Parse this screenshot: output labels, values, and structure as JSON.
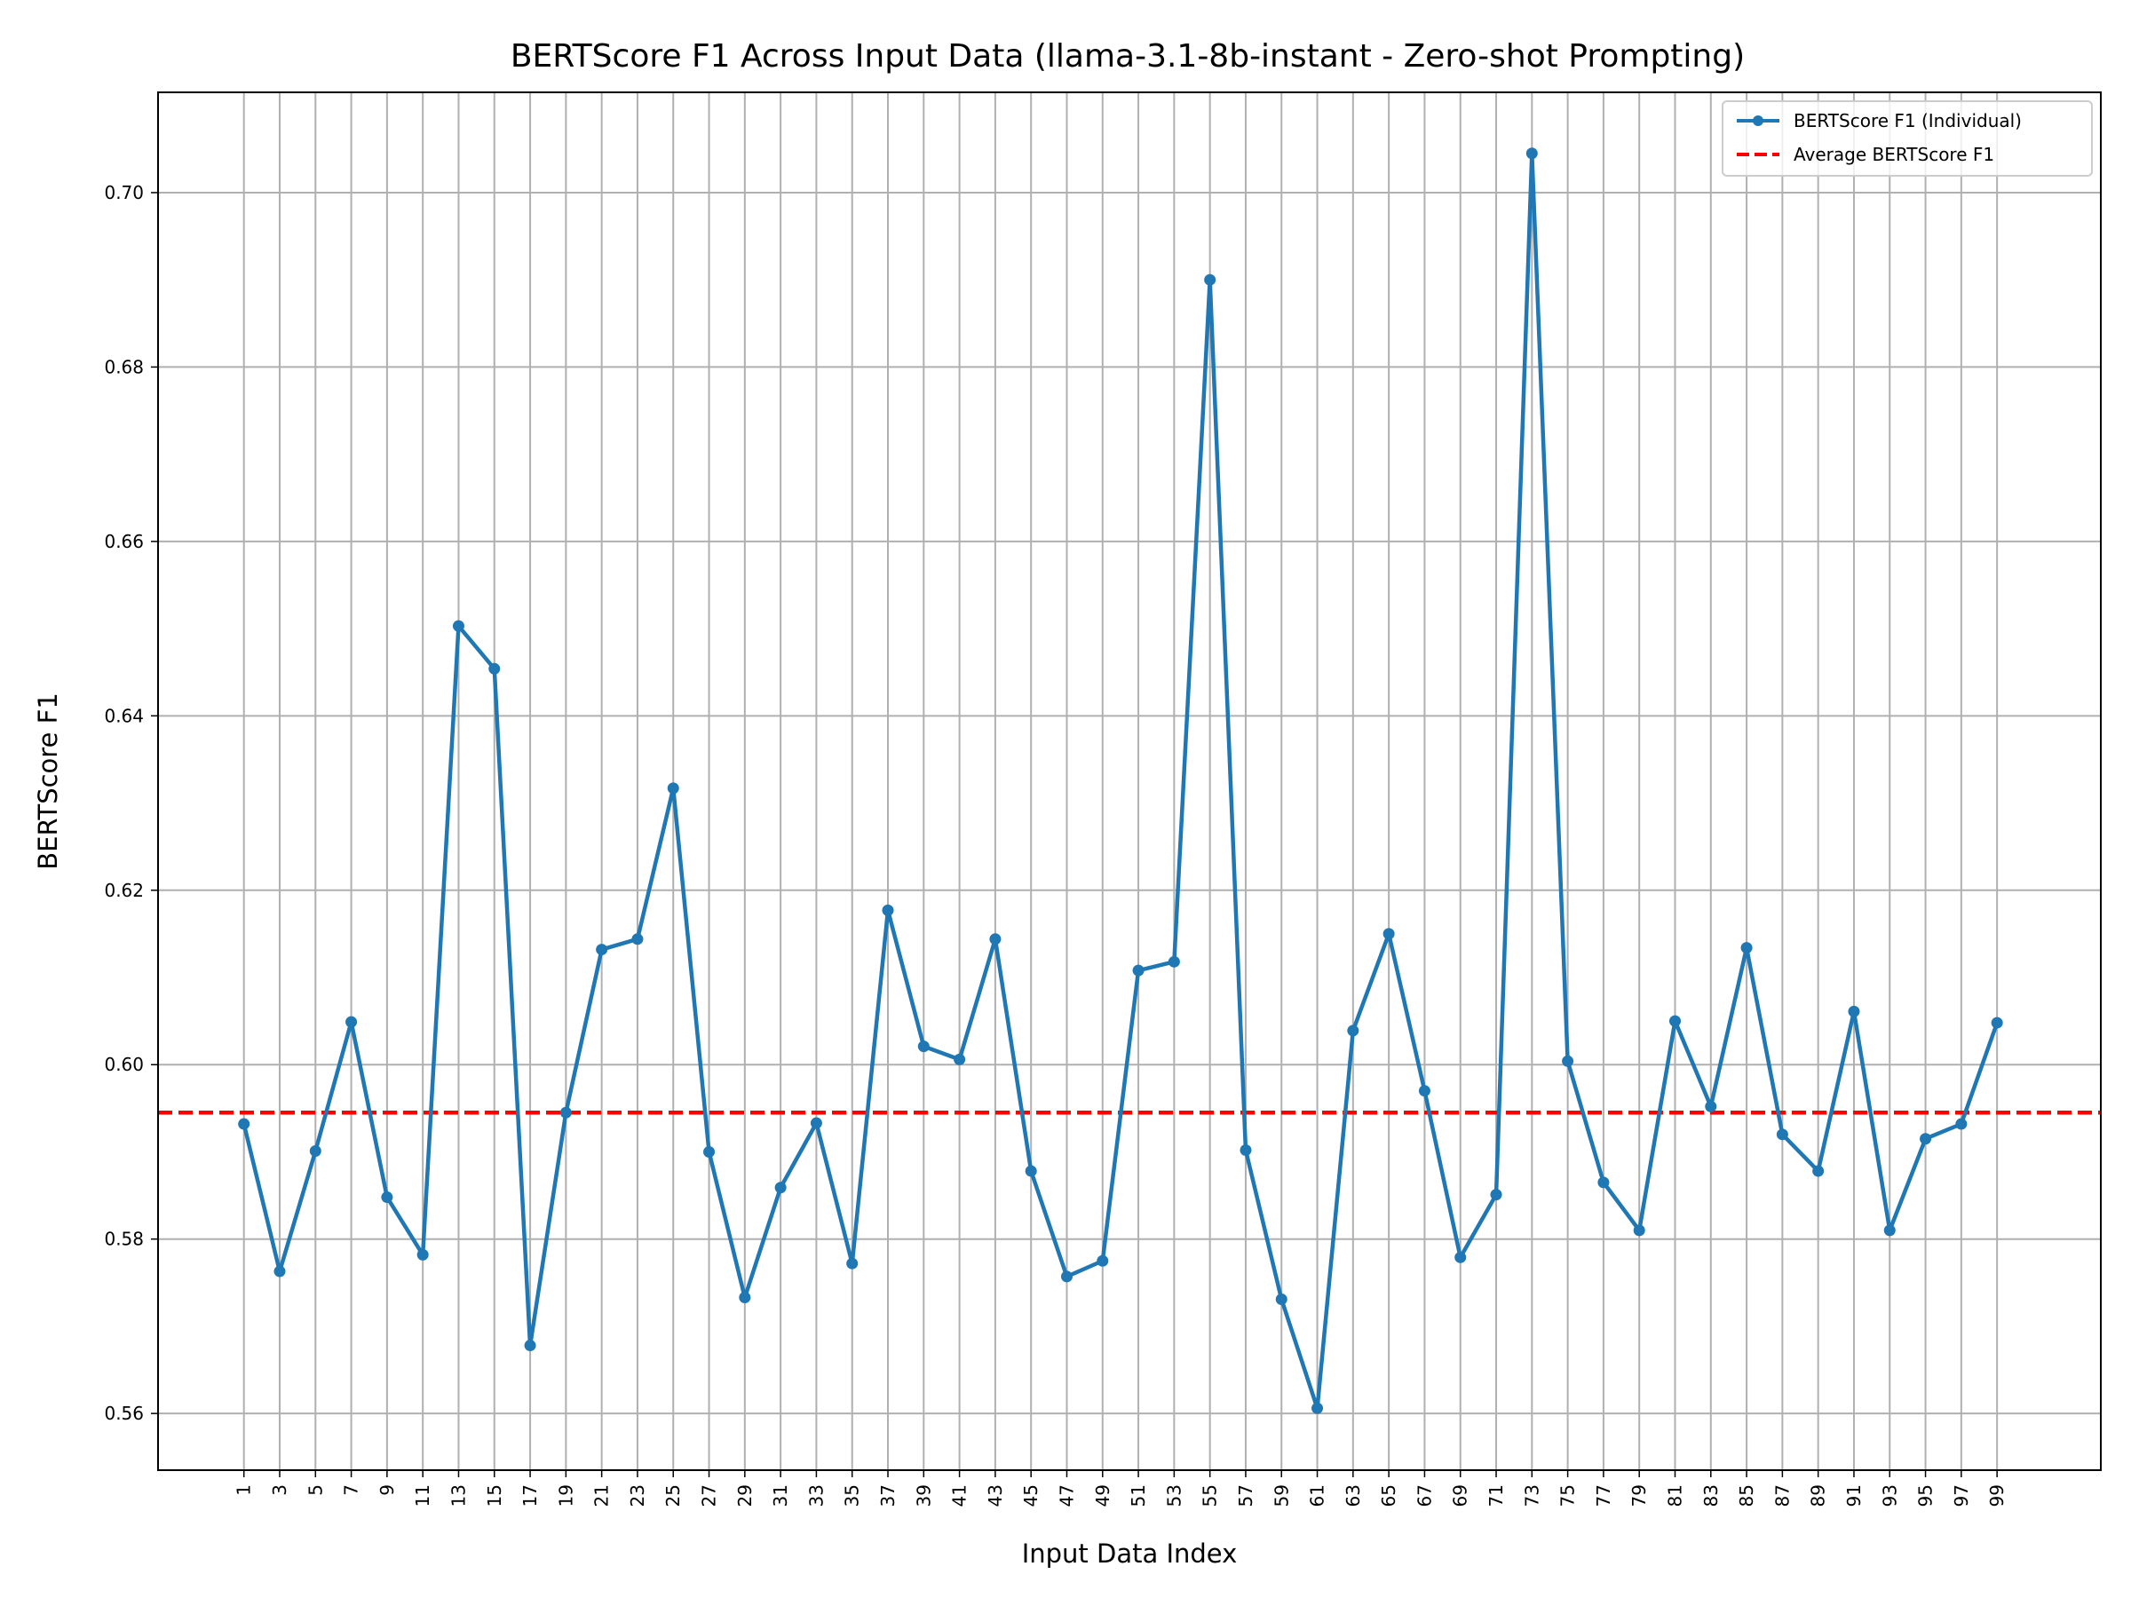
{
  "chart_data": {
    "type": "line",
    "title": "BERTScore F1 Across Input Data (llama-3.1-8b-instant - Zero-shot Prompting)",
    "xlabel": "Input Data Index",
    "ylabel": "BERTScore F1",
    "xlim": [
      -3.8,
      104.8
    ],
    "ylim": [
      0.5535,
      0.7115
    ],
    "x_ticks": [
      1,
      3,
      5,
      7,
      9,
      11,
      13,
      15,
      17,
      19,
      21,
      23,
      25,
      27,
      29,
      31,
      33,
      35,
      37,
      39,
      41,
      43,
      45,
      47,
      49,
      51,
      53,
      55,
      57,
      59,
      61,
      63,
      65,
      67,
      69,
      71,
      73,
      75,
      77,
      79,
      81,
      83,
      85,
      87,
      89,
      91,
      93,
      95,
      97,
      99
    ],
    "y_ticks": [
      0.56,
      0.58,
      0.6,
      0.62,
      0.64,
      0.66,
      0.68,
      0.7
    ],
    "y_tick_labels": [
      "0.56",
      "0.58",
      "0.60",
      "0.62",
      "0.64",
      "0.66",
      "0.68",
      "0.70"
    ],
    "grid": true,
    "legend_position": "top-right",
    "series": [
      {
        "name": "BERTScore F1 (Individual)",
        "color": "#1f77b4",
        "style": "solid-with-markers",
        "x": [
          1,
          3,
          5,
          7,
          9,
          11,
          13,
          15,
          17,
          19,
          21,
          23,
          25,
          27,
          29,
          31,
          33,
          35,
          37,
          39,
          41,
          43,
          45,
          47,
          49,
          51,
          53,
          55,
          57,
          59,
          61,
          63,
          65,
          67,
          69,
          71,
          73,
          75,
          77,
          79,
          81,
          83,
          85,
          87,
          89,
          91,
          93,
          95,
          97,
          99
        ],
        "values": [
          0.5932,
          0.5763,
          0.5901,
          0.6049,
          0.5848,
          0.5782,
          0.6503,
          0.6454,
          0.5678,
          0.5945,
          0.6132,
          0.6144,
          0.6317,
          0.59,
          0.5733,
          0.5859,
          0.5933,
          0.5772,
          0.6177,
          0.6021,
          0.6006,
          0.6144,
          0.5878,
          0.5757,
          0.5775,
          0.6108,
          0.6118,
          0.69,
          0.5902,
          0.5731,
          0.5606,
          0.6039,
          0.615,
          0.597,
          0.5779,
          0.5851,
          0.7045,
          0.6004,
          0.5865,
          0.581,
          0.605,
          0.5952,
          0.6134,
          0.592,
          0.5878,
          0.6061,
          0.581,
          0.5915,
          0.5932,
          0.6048
        ]
      },
      {
        "name": "Average BERTScore F1",
        "color": "#ff0000",
        "style": "dashed",
        "value": 0.5945
      }
    ]
  }
}
